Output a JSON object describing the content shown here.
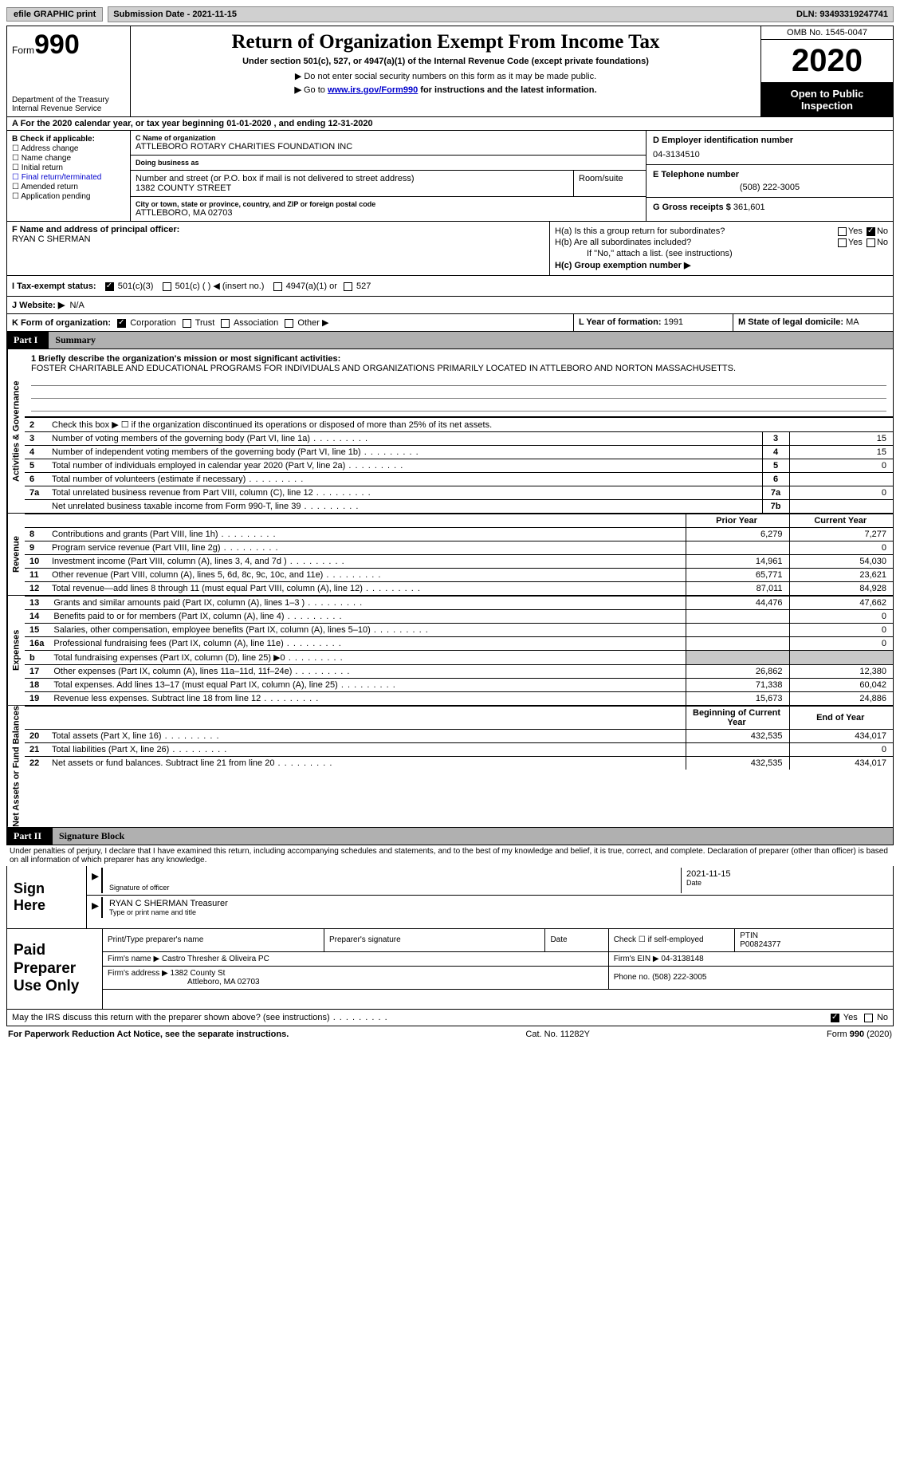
{
  "topbar": {
    "efile_label": "efile GRAPHIC print",
    "submission_label": "Submission Date - 2021-11-15",
    "dln_label": "DLN: 93493319247741"
  },
  "header": {
    "form_prefix": "Form",
    "form_number": "990",
    "dept1": "Department of the Treasury",
    "dept2": "Internal Revenue Service",
    "title": "Return of Organization Exempt From Income Tax",
    "subtitle": "Under section 501(c), 527, or 4947(a)(1) of the Internal Revenue Code (except private foundations)",
    "note1": "Do not enter social security numbers on this form as it may be made public.",
    "note2_pre": "Go to ",
    "note2_link": "www.irs.gov/Form990",
    "note2_post": " for instructions and the latest information.",
    "omb": "OMB No. 1545-0047",
    "year": "2020",
    "open1": "Open to Public",
    "open2": "Inspection"
  },
  "period": {
    "text": "A For the 2020 calendar year, or tax year beginning 01-01-2020   , and ending 12-31-2020"
  },
  "section_b": {
    "heading": "B Check if applicable:",
    "items": [
      "Address change",
      "Name change",
      "Initial return",
      "Final return/terminated",
      "Amended return",
      "Application pending"
    ]
  },
  "section_c": {
    "label_name": "C Name of organization",
    "org_name": "ATTLEBORO ROTARY CHARITIES FOUNDATION INC",
    "dba_label": "Doing business as",
    "dba": "",
    "addr_label": "Number and street (or P.O. box if mail is not delivered to street address)",
    "room_label": "Room/suite",
    "street": "1382 COUNTY STREET",
    "city_label": "City or town, state or province, country, and ZIP or foreign postal code",
    "city": "ATTLEBORO, MA  02703"
  },
  "section_d": {
    "label": "D Employer identification number",
    "value": "04-3134510"
  },
  "section_e": {
    "label": "E Telephone number",
    "value": "(508) 222-3005"
  },
  "section_g": {
    "label": "G Gross receipts $",
    "value": "361,601"
  },
  "section_f": {
    "label": "F Name and address of principal officer:",
    "name": "RYAN C SHERMAN"
  },
  "section_h": {
    "ha": "H(a)  Is this a group return for subordinates?",
    "hb": "H(b)  Are all subordinates included?",
    "hb_note": "If \"No,\" attach a list. (see instructions)",
    "hc": "H(c)  Group exemption number ▶",
    "yes": "Yes",
    "no": "No"
  },
  "row_i": {
    "label": "I   Tax-exempt status:",
    "opt1": "501(c)(3)",
    "opt2": "501(c) (  ) ◀ (insert no.)",
    "opt3": "4947(a)(1) or",
    "opt4": "527"
  },
  "row_j": {
    "label": "J   Website: ▶",
    "value": "N/A"
  },
  "row_k": {
    "label": "K Form of organization:",
    "opts": [
      "Corporation",
      "Trust",
      "Association",
      "Other ▶"
    ]
  },
  "row_l": {
    "label": "L Year of formation:",
    "value": "1991"
  },
  "row_m": {
    "label": "M State of legal domicile:",
    "value": "MA"
  },
  "parts": {
    "p1_label": "Part I",
    "p1_title": "Summary",
    "p2_label": "Part II",
    "p2_title": "Signature Block"
  },
  "side_tabs": {
    "gov": "Activities & Governance",
    "rev": "Revenue",
    "exp": "Expenses",
    "net": "Net Assets or Fund Balances"
  },
  "mission": {
    "q1": "1  Briefly describe the organization's mission or most significant activities:",
    "text": "FOSTER CHARITABLE AND EDUCATIONAL PROGRAMS FOR INDIVIDUALS AND ORGANIZATIONS PRIMARILY LOCATED IN ATTLEBORO AND NORTON MASSACHUSETTS."
  },
  "gov_rows": [
    {
      "n": "2",
      "t": "Check this box ▶ ☐  if the organization discontinued its operations or disposed of more than 25% of its net assets.",
      "box": "",
      "v": ""
    },
    {
      "n": "3",
      "t": "Number of voting members of the governing body (Part VI, line 1a)",
      "box": "3",
      "v": "15"
    },
    {
      "n": "4",
      "t": "Number of independent voting members of the governing body (Part VI, line 1b)",
      "box": "4",
      "v": "15"
    },
    {
      "n": "5",
      "t": "Total number of individuals employed in calendar year 2020 (Part V, line 2a)",
      "box": "5",
      "v": "0"
    },
    {
      "n": "6",
      "t": "Total number of volunteers (estimate if necessary)",
      "box": "6",
      "v": ""
    },
    {
      "n": "7a",
      "t": "Total unrelated business revenue from Part VIII, column (C), line 12",
      "box": "7a",
      "v": "0"
    },
    {
      "n": "",
      "t": "Net unrelated business taxable income from Form 990-T, line 39",
      "box": "7b",
      "v": ""
    }
  ],
  "two_col_header": {
    "prior": "Prior Year",
    "current": "Current Year"
  },
  "rev_rows": [
    {
      "n": "8",
      "t": "Contributions and grants (Part VIII, line 1h)",
      "p": "6,279",
      "c": "7,277"
    },
    {
      "n": "9",
      "t": "Program service revenue (Part VIII, line 2g)",
      "p": "",
      "c": "0"
    },
    {
      "n": "10",
      "t": "Investment income (Part VIII, column (A), lines 3, 4, and 7d )",
      "p": "14,961",
      "c": "54,030"
    },
    {
      "n": "11",
      "t": "Other revenue (Part VIII, column (A), lines 5, 6d, 8c, 9c, 10c, and 11e)",
      "p": "65,771",
      "c": "23,621"
    },
    {
      "n": "12",
      "t": "Total revenue—add lines 8 through 11 (must equal Part VIII, column (A), line 12)",
      "p": "87,011",
      "c": "84,928"
    }
  ],
  "exp_rows": [
    {
      "n": "13",
      "t": "Grants and similar amounts paid (Part IX, column (A), lines 1–3 )",
      "p": "44,476",
      "c": "47,662"
    },
    {
      "n": "14",
      "t": "Benefits paid to or for members (Part IX, column (A), line 4)",
      "p": "",
      "c": "0"
    },
    {
      "n": "15",
      "t": "Salaries, other compensation, employee benefits (Part IX, column (A), lines 5–10)",
      "p": "",
      "c": "0"
    },
    {
      "n": "16a",
      "t": "Professional fundraising fees (Part IX, column (A), line 11e)",
      "p": "",
      "c": "0"
    },
    {
      "n": "b",
      "t": "Total fundraising expenses (Part IX, column (D), line 25) ▶0",
      "p": "shade",
      "c": "shade"
    },
    {
      "n": "17",
      "t": "Other expenses (Part IX, column (A), lines 11a–11d, 11f–24e)",
      "p": "26,862",
      "c": "12,380"
    },
    {
      "n": "18",
      "t": "Total expenses. Add lines 13–17 (must equal Part IX, column (A), line 25)",
      "p": "71,338",
      "c": "60,042"
    },
    {
      "n": "19",
      "t": "Revenue less expenses. Subtract line 18 from line 12",
      "p": "15,673",
      "c": "24,886"
    }
  ],
  "net_header": {
    "begin": "Beginning of Current Year",
    "end": "End of Year"
  },
  "net_rows": [
    {
      "n": "20",
      "t": "Total assets (Part X, line 16)",
      "p": "432,535",
      "c": "434,017"
    },
    {
      "n": "21",
      "t": "Total liabilities (Part X, line 26)",
      "p": "",
      "c": "0"
    },
    {
      "n": "22",
      "t": "Net assets or fund balances. Subtract line 21 from line 20",
      "p": "432,535",
      "c": "434,017"
    }
  ],
  "penalties": "Under penalties of perjury, I declare that I have examined this return, including accompanying schedules and statements, and to the best of my knowledge and belief, it is true, correct, and complete. Declaration of preparer (other than officer) is based on all information of which preparer has any knowledge.",
  "sign": {
    "left": "Sign Here",
    "sig_label": "Signature of officer",
    "date_label": "Date",
    "date": "2021-11-15",
    "name": "RYAN C SHERMAN  Treasurer",
    "name_label": "Type or print name and title"
  },
  "prep": {
    "left": "Paid Preparer Use Only",
    "h1": "Print/Type preparer's name",
    "h2": "Preparer's signature",
    "h3": "Date",
    "h4a": "Check ☐ if self-employed",
    "h4b": "PTIN",
    "ptin": "P00824377",
    "firm_name_l": "Firm's name    ▶",
    "firm_name": "Castro Thresher & Oliveira PC",
    "firm_ein_l": "Firm's EIN ▶",
    "firm_ein": "04-3138148",
    "firm_addr_l": "Firm's address ▶",
    "firm_addr1": "1382 County St",
    "firm_addr2": "Attleboro, MA  02703",
    "phone_l": "Phone no.",
    "phone": "(508) 222-3005"
  },
  "discuss": {
    "text": "May the IRS discuss this return with the preparer shown above? (see instructions)",
    "yes": "Yes",
    "no": "No"
  },
  "footer": {
    "left": "For Paperwork Reduction Act Notice, see the separate instructions.",
    "mid": "Cat. No. 11282Y",
    "right": "Form 990 (2020)"
  },
  "colors": {
    "link": "#0000cc",
    "shade": "#c8c8c8",
    "part_bg": "#b0b0b0"
  }
}
